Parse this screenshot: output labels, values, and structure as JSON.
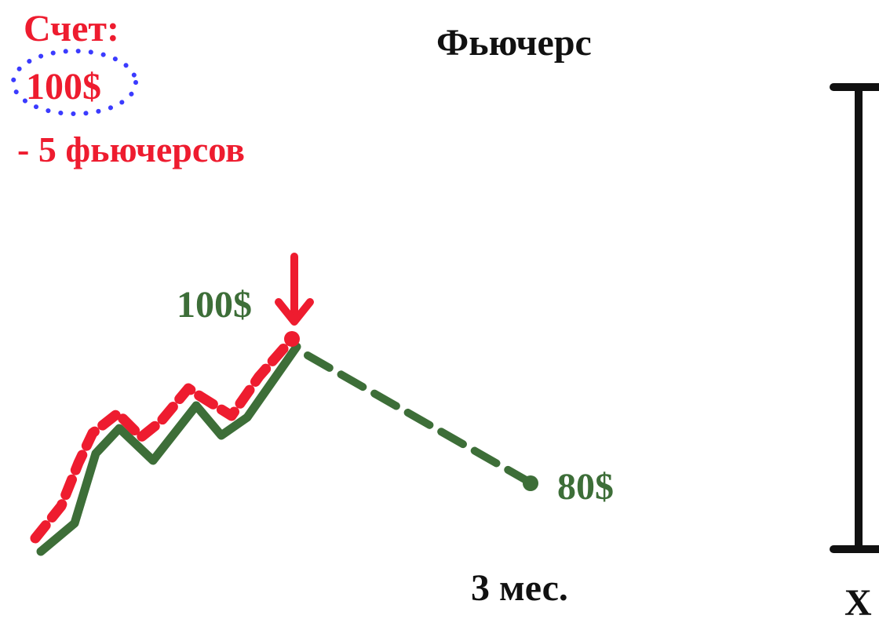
{
  "account": {
    "label": "Счет:",
    "amount": "100$",
    "position": "- 5 фьючерсов"
  },
  "title": "Фьючерс",
  "price_peak_label": "100$",
  "price_end_label": "80$",
  "time_label": "3 мес.",
  "axis_label": "X",
  "colors": {
    "red": "#ee1c2f",
    "green": "#3d6e38",
    "blue_dots": "#3b3bff",
    "black": "#111111"
  }
}
